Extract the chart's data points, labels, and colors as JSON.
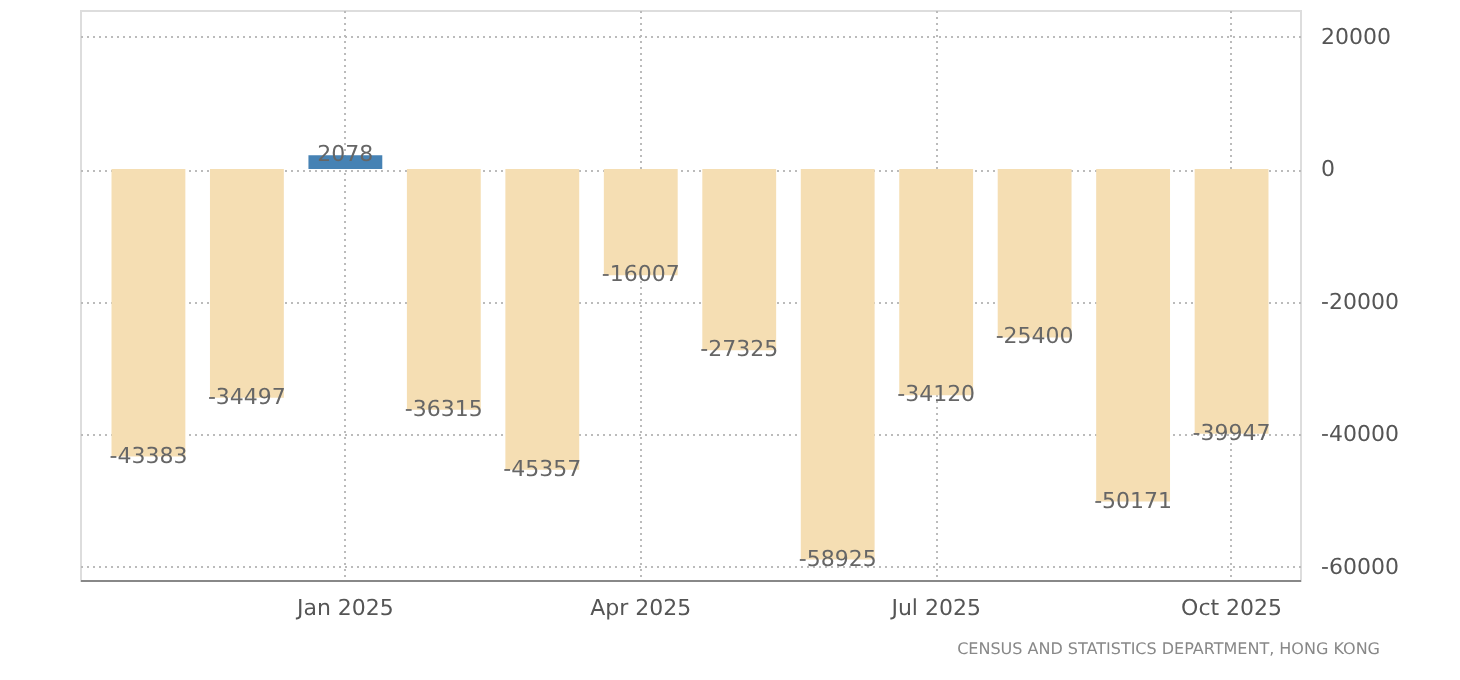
{
  "chart_data": {
    "type": "bar",
    "categories": [
      null,
      null,
      "Jan 2025",
      null,
      null,
      "Apr 2025",
      null,
      null,
      "Jul 2025",
      null,
      null,
      "Oct 2025"
    ],
    "values": [
      -43383,
      -34497,
      2078,
      -36315,
      -45357,
      -16007,
      -27325,
      -58925,
      -34120,
      -25400,
      -50171,
      -39947
    ],
    "colors": [
      "#f5deb3",
      "#f5deb3",
      "#4682b4",
      "#f5deb3",
      "#f5deb3",
      "#f5deb3",
      "#f5deb3",
      "#f5deb3",
      "#f5deb3",
      "#f5deb3",
      "#f5deb3",
      "#f5deb3"
    ],
    "data_labels": true,
    "ylim": [
      -62000,
      24000
    ],
    "yticks": [
      -60000,
      -40000,
      -20000,
      0,
      20000
    ],
    "grid": true,
    "annotations": [
      "CENSUS AND STATISTICS DEPARTMENT, HONG KONG"
    ]
  }
}
